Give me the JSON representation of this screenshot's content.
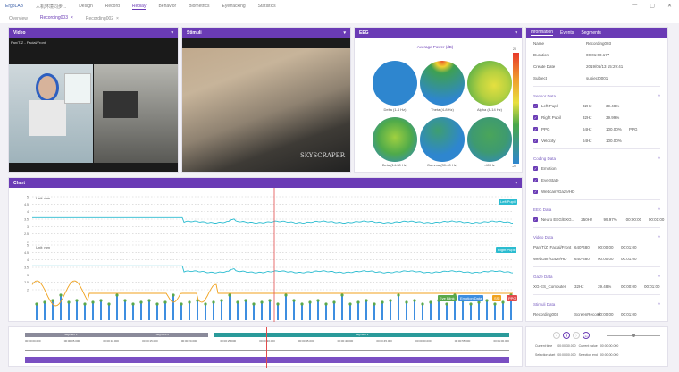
{
  "app": {
    "name": "ErgoLAB",
    "project": "人机环境同步...",
    "nav": [
      "Design",
      "Record",
      "Replay",
      "Behavior",
      "Biometrics",
      "Eyetracking",
      "Statistics"
    ],
    "active_nav": "Replay",
    "window_controls": [
      "—",
      "▢",
      "✕"
    ]
  },
  "tabs": [
    {
      "label": "Overview"
    },
    {
      "label": "Recording003",
      "active": true,
      "close": "×"
    },
    {
      "label": "Recording002",
      "close": "×"
    }
  ],
  "video": {
    "title": "Video",
    "caption": "Pan/T/Z - Facial/Front"
  },
  "stimuli": {
    "title": "Stimuli",
    "watermark": "SKYSCRAPER"
  },
  "eeg": {
    "title": "EEG",
    "chart_title": "Average Power (dB)",
    "scale_max": "20",
    "scale_min": "-20",
    "bands": [
      "Delta (1-4 Hz)",
      "Theta (4-8 Hz)",
      "Alpha (8-14 Hz)",
      "Beta (14-30 Hz)",
      "Gamma (30-40 Hz)",
      "-40 Hz"
    ]
  },
  "info": {
    "tabs": [
      "Information",
      "Events",
      "Segments"
    ],
    "fields": [
      {
        "k": "Name",
        "v": "Recording003"
      },
      {
        "k": "Duration",
        "v": "00:01:00.177"
      },
      {
        "k": "Create Date",
        "v": "2019/06/13 15:29:41"
      },
      {
        "k": "Subject",
        "v": "subject0001"
      }
    ],
    "sensor": {
      "title": "Sensor Data",
      "rows": [
        [
          "Left Pupil",
          "32Hz",
          "39.48%",
          ""
        ],
        [
          "Right Pupil",
          "32Hz",
          "39.99%",
          ""
        ],
        [
          "PPG",
          "64Hz",
          "100.00%",
          "PPG"
        ],
        [
          "Velocity",
          "64Hz",
          "100.00%",
          ""
        ]
      ]
    },
    "coding": {
      "title": "Coding Data",
      "rows": [
        "Emotion",
        "Eye State",
        "Webcam/Gaze/HD"
      ]
    },
    "eeg": {
      "title": "EEG Data",
      "rows": [
        [
          "Neuro EEG/EXG...",
          "250Hz",
          "99.97%",
          "00:00:00",
          "00:01:00"
        ]
      ]
    },
    "video": {
      "title": "Video Data",
      "rows": [
        [
          "Pan/T/Z_Facial/Front",
          "640*480",
          "00:00:00",
          "00:01:00"
        ],
        [
          "Webcam/Gaze/HD",
          "640*480",
          "00:00:00",
          "00:01:00"
        ]
      ]
    },
    "gaze": {
      "title": "Gaze Data",
      "rows": [
        [
          "XG-ES_Computer",
          "32Hz",
          "39.48%",
          "00:00:00",
          "00:01:00"
        ]
      ]
    },
    "stimuli": {
      "title": "Stimuli Data",
      "rows": [
        [
          "Recording003",
          "ScreenRecord",
          "00:00:00",
          "00:01:00"
        ]
      ]
    }
  },
  "chart": {
    "title": "Chart",
    "unit1": "Unit: mm",
    "unit2": "Unit: mm",
    "y_ticks": [
      "5",
      "4.5",
      "4",
      "3.5",
      "3",
      "2.5",
      "2"
    ],
    "legend": [
      "Left Pupil",
      "Right Pupil"
    ],
    "badges": [
      "Eye Blink",
      "Emotion Data",
      "SSI",
      "PPG"
    ]
  },
  "chart_data": {
    "type": "line",
    "series": [
      {
        "name": "Left Pupil",
        "before": 3.6,
        "after": 3.3
      },
      {
        "name": "Right Pupil",
        "before": 3.6,
        "after": 3.2
      }
    ]
  },
  "timeline": {
    "segments": [
      "Segment 1",
      "Segment 2",
      "Segment 3"
    ],
    "ticks": [
      "00:00:00.000",
      "00:00:05.000",
      "00:00:10.000",
      "00:00:15.000",
      "00:00:20.000",
      "00:00:25.000",
      "00:00:30.000",
      "00:00:35.000",
      "00:00:40.000",
      "00:00:45.000",
      "00:00:50.000",
      "00:00:55.000",
      "00:01:00.000"
    ]
  },
  "controls": {
    "current_time_label": "Current time",
    "current_time": "00:00:30.000",
    "current_value_label": "Current value",
    "current_value": "00:00:00.000",
    "sel_start_label": "Selection start",
    "sel_start": "00:00:00.000",
    "sel_end_label": "Selection end",
    "sel_end": "00:00:00.000"
  },
  "colors": {
    "accent": "#6a3bb5",
    "line": "#2bbcd0",
    "bar": "#3e8ee0",
    "orange": "#f0a21e",
    "green": "#5aa84a",
    "cursor": "#e24b4b"
  }
}
